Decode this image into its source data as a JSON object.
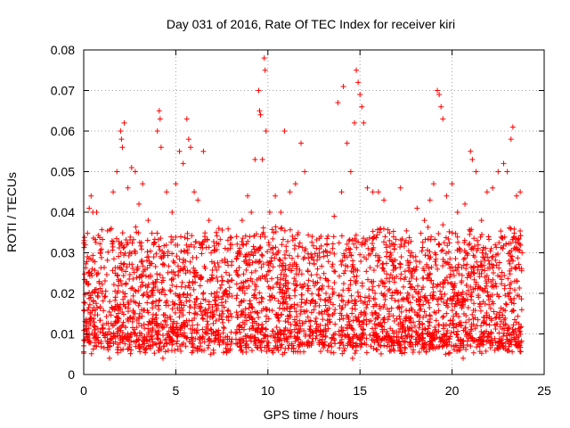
{
  "chart_data": {
    "type": "scatter",
    "title": "Day 031 of 2016, Rate Of TEC Index for receiver kiri",
    "xlabel": "GPS time / hours",
    "ylabel": "ROTI / TECUs",
    "xlim": [
      0,
      25
    ],
    "ylim": [
      0,
      0.08
    ],
    "x_ticks": [
      "0",
      "5",
      "10",
      "15",
      "20",
      "25"
    ],
    "y_ticks": [
      "0",
      "0.01",
      "0.02",
      "0.03",
      "0.04",
      "0.05",
      "0.06",
      "0.07",
      "0.08"
    ],
    "grid": true,
    "marker": "plus",
    "series": [
      {
        "color": "#ff0000",
        "points": [
          [
            0.1,
            0.012
          ],
          [
            0.2,
            0.029
          ],
          [
            0.3,
            0.041
          ],
          [
            0.4,
            0.044
          ],
          [
            0.5,
            0.04
          ],
          [
            0.7,
            0.04
          ],
          [
            0.9,
            0.03
          ],
          [
            1.0,
            0.02
          ],
          [
            1.2,
            0.01
          ],
          [
            1.4,
            0.004
          ],
          [
            1.5,
            0.036
          ],
          [
            1.6,
            0.045
          ],
          [
            1.8,
            0.05
          ],
          [
            2.0,
            0.06
          ],
          [
            2.05,
            0.058
          ],
          [
            2.1,
            0.056
          ],
          [
            2.2,
            0.062
          ],
          [
            2.4,
            0.046
          ],
          [
            2.6,
            0.051
          ],
          [
            2.8,
            0.05
          ],
          [
            3.0,
            0.042
          ],
          [
            3.2,
            0.047
          ],
          [
            3.5,
            0.038
          ],
          [
            3.8,
            0.032
          ],
          [
            4.0,
            0.06
          ],
          [
            4.1,
            0.065
          ],
          [
            4.15,
            0.063
          ],
          [
            4.2,
            0.056
          ],
          [
            4.5,
            0.045
          ],
          [
            4.8,
            0.04
          ],
          [
            5.0,
            0.047
          ],
          [
            5.2,
            0.055
          ],
          [
            5.4,
            0.052
          ],
          [
            5.6,
            0.063
          ],
          [
            5.7,
            0.058
          ],
          [
            5.8,
            0.056
          ],
          [
            6.0,
            0.045
          ],
          [
            6.2,
            0.043
          ],
          [
            6.5,
            0.055
          ],
          [
            6.8,
            0.038
          ],
          [
            7.2,
            0.035
          ],
          [
            7.5,
            0.028
          ],
          [
            7.8,
            0.023
          ],
          [
            8.0,
            0.008
          ],
          [
            8.3,
            0.034
          ],
          [
            8.6,
            0.038
          ],
          [
            8.9,
            0.044
          ],
          [
            9.1,
            0.04
          ],
          [
            9.3,
            0.053
          ],
          [
            9.5,
            0.07
          ],
          [
            9.55,
            0.065
          ],
          [
            9.6,
            0.064
          ],
          [
            9.7,
            0.053
          ],
          [
            9.8,
            0.078
          ],
          [
            9.85,
            0.075
          ],
          [
            9.9,
            0.06
          ],
          [
            10.1,
            0.04
          ],
          [
            10.4,
            0.044
          ],
          [
            10.7,
            0.04
          ],
          [
            10.9,
            0.06
          ],
          [
            11.2,
            0.045
          ],
          [
            11.5,
            0.047
          ],
          [
            11.8,
            0.057
          ],
          [
            12.0,
            0.05
          ],
          [
            12.4,
            0.034
          ],
          [
            12.8,
            0.031
          ],
          [
            13.2,
            0.032
          ],
          [
            13.6,
            0.039
          ],
          [
            13.8,
            0.067
          ],
          [
            14.0,
            0.045
          ],
          [
            14.1,
            0.071
          ],
          [
            14.3,
            0.057
          ],
          [
            14.5,
            0.05
          ],
          [
            14.7,
            0.062
          ],
          [
            14.8,
            0.075
          ],
          [
            14.9,
            0.072
          ],
          [
            15.0,
            0.069
          ],
          [
            15.1,
            0.066
          ],
          [
            15.2,
            0.062
          ],
          [
            15.4,
            0.046
          ],
          [
            15.7,
            0.045
          ],
          [
            16.0,
            0.045
          ],
          [
            16.3,
            0.043
          ],
          [
            16.6,
            0.033
          ],
          [
            16.9,
            0.032
          ],
          [
            17.2,
            0.046
          ],
          [
            17.5,
            0.033
          ],
          [
            17.8,
            0.03
          ],
          [
            18.1,
            0.041
          ],
          [
            18.5,
            0.038
          ],
          [
            18.8,
            0.043
          ],
          [
            19.0,
            0.047
          ],
          [
            19.2,
            0.07
          ],
          [
            19.3,
            0.069
          ],
          [
            19.4,
            0.066
          ],
          [
            19.5,
            0.063
          ],
          [
            19.7,
            0.044
          ],
          [
            20.0,
            0.047
          ],
          [
            20.3,
            0.04
          ],
          [
            20.7,
            0.042
          ],
          [
            21.0,
            0.055
          ],
          [
            21.1,
            0.053
          ],
          [
            21.3,
            0.05
          ],
          [
            21.6,
            0.038
          ],
          [
            21.9,
            0.045
          ],
          [
            22.2,
            0.046
          ],
          [
            22.5,
            0.05
          ],
          [
            22.8,
            0.052
          ],
          [
            23.0,
            0.05
          ],
          [
            23.2,
            0.058
          ],
          [
            23.3,
            0.061
          ],
          [
            23.5,
            0.044
          ],
          [
            23.7,
            0.045
          ],
          [
            23.8,
            0.03
          ],
          [
            14.6,
            0.004
          ],
          [
            19.6,
            0.008
          ],
          [
            20.6,
            0.004
          ],
          [
            6.9,
            0.005
          ],
          [
            4.3,
            0.004
          ],
          [
            10.8,
            0.005
          ]
        ]
      }
    ]
  }
}
